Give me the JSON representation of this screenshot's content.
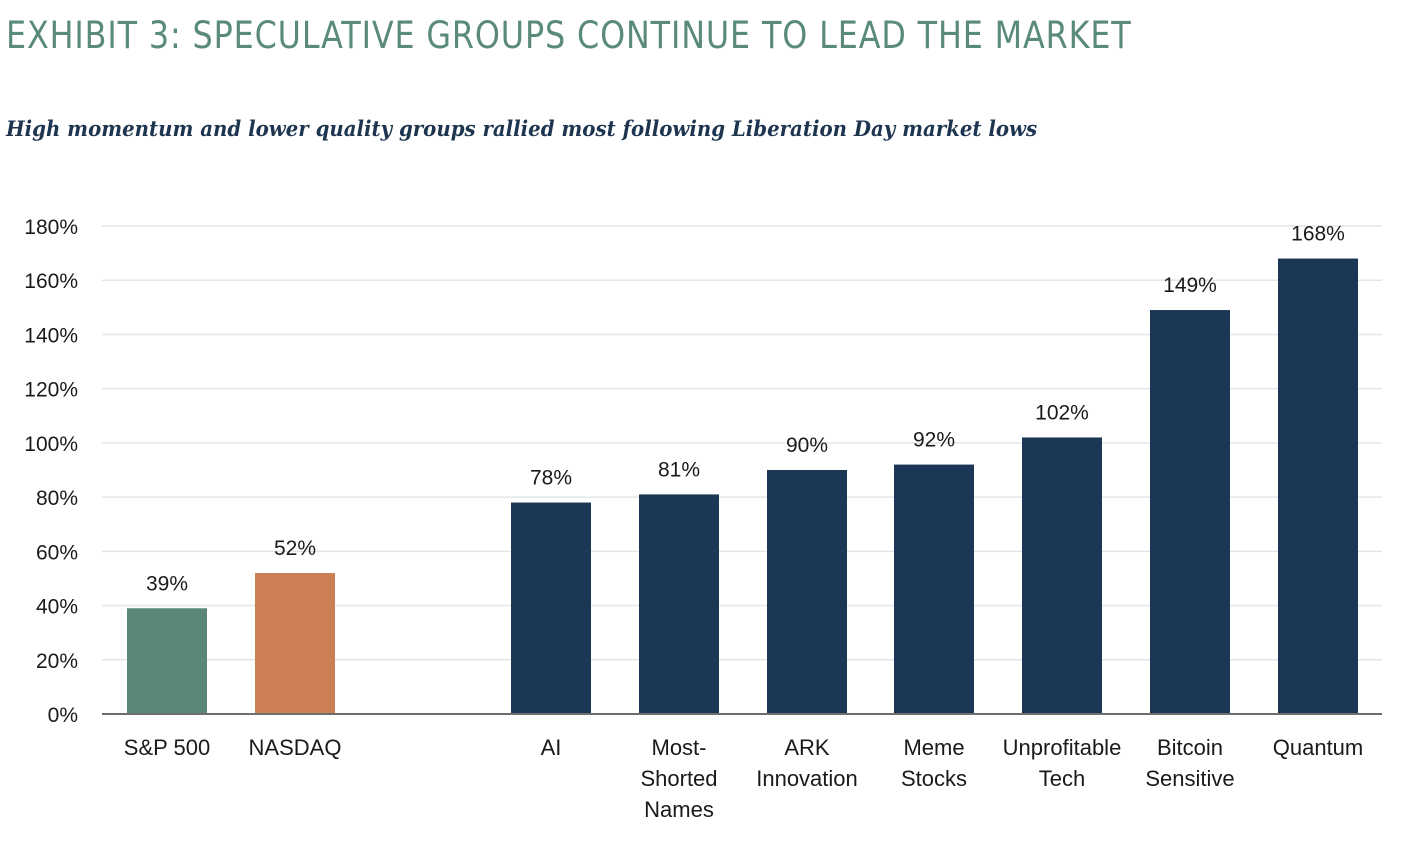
{
  "header": {
    "title": "EXHIBIT 3: SPECULATIVE GROUPS CONTINUE TO LEAD THE MARKET",
    "subtitle": "High momentum and lower quality groups rallied most following Liberation Day market lows"
  },
  "colors": {
    "sp500": "#5b8876",
    "nasdaq": "#cc7e55",
    "groups": "#1b3755",
    "grid": "#e0e6ea",
    "axis": "#6e6e6e"
  },
  "chart_data": {
    "type": "bar",
    "ylim": [
      0,
      180
    ],
    "yticks": [
      0,
      20,
      40,
      60,
      80,
      100,
      120,
      140,
      160,
      180
    ],
    "ytick_labels": [
      "0%",
      "20%",
      "40%",
      "60%",
      "80%",
      "100%",
      "120%",
      "140%",
      "160%",
      "180%"
    ],
    "grid": true,
    "categories": [
      [
        "S&P 500"
      ],
      [
        "NASDAQ"
      ],
      [
        "AI"
      ],
      [
        "Most-",
        "Shorted",
        "Names"
      ],
      [
        "ARK",
        "Innovation"
      ],
      [
        "Meme",
        "Stocks"
      ],
      [
        "Unprofitable",
        "Tech"
      ],
      [
        "Bitcoin",
        "Sensitive"
      ],
      [
        "Quantum"
      ]
    ],
    "values": [
      39,
      52,
      78,
      81,
      90,
      92,
      102,
      149,
      168
    ],
    "value_labels": [
      "39%",
      "52%",
      "78%",
      "81%",
      "90%",
      "92%",
      "102%",
      "149%",
      "168%"
    ],
    "bar_colors": [
      "#5b8876",
      "#cc7e55",
      "#1b3755",
      "#1b3755",
      "#1b3755",
      "#1b3755",
      "#1b3755",
      "#1b3755",
      "#1b3755"
    ]
  }
}
